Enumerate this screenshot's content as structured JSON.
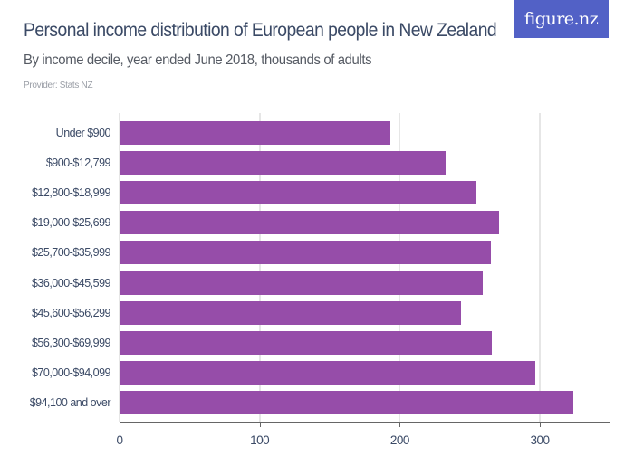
{
  "header": {
    "title": "Personal income distribution of European people in New Zealand",
    "subtitle": "By income decile, year ended June 2018, thousands of adults",
    "provider": "Provider: Stats NZ",
    "logo": "figure.nz"
  },
  "colors": {
    "bar": "#964da9",
    "logo_bg": "#5261c6",
    "text": "#3b4a66",
    "gridline": "#e6e6e6"
  },
  "chart_data": {
    "type": "bar",
    "orientation": "horizontal",
    "title": "Personal income distribution of European people in New Zealand",
    "subtitle": "By income decile, year ended June 2018, thousands of adults",
    "xlabel": "",
    "ylabel": "",
    "categories": [
      "Under $900",
      "$900-$12,799",
      "$12,800-$18,999",
      "$19,000-$25,699",
      "$25,700-$35,999",
      "$36,000-$45,599",
      "$45,600-$56,299",
      "$56,300-$69,999",
      "$70,000-$94,099",
      "$94,100 and over"
    ],
    "values": [
      193,
      233,
      255,
      271,
      265,
      259,
      244,
      266,
      297,
      324
    ],
    "units": "thousands of adults",
    "xlim": [
      0,
      350
    ],
    "x_ticks": [
      "0",
      "100",
      "200",
      "300"
    ],
    "grid": true,
    "legend": null
  }
}
